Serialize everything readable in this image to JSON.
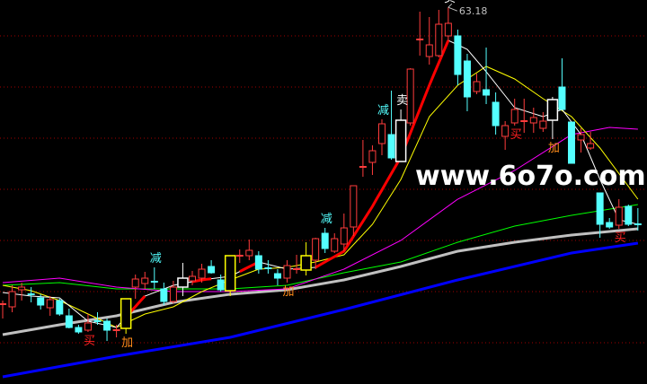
{
  "chart_data": {
    "type": "candlestick",
    "title": "",
    "xlabel": "",
    "ylabel": "",
    "ylim": [
      21.2,
      64.0
    ],
    "grid": {
      "style": "dotted",
      "color": "#a00000",
      "levels": [
        60.0,
        54.3,
        48.6,
        42.9,
        37.2,
        31.5,
        25.8
      ]
    },
    "colors": {
      "up": "#ff3c3c",
      "down": "#54ffff",
      "background": "#000000"
    },
    "max_label": {
      "index": 47,
      "text": "63.18"
    },
    "candles": [
      [
        30.0,
        30.1,
        30.5,
        28.5
      ],
      [
        29.8,
        31.5,
        32.2,
        29.2
      ],
      [
        31.7,
        32.0,
        32.5,
        30.5
      ],
      [
        31.2,
        31.1,
        32.0,
        30.3
      ],
      [
        30.8,
        30.0,
        31.2,
        29.5
      ],
      [
        29.7,
        30.6,
        31.0,
        28.8
      ],
      [
        30.5,
        29.0,
        30.7,
        28.8
      ],
      [
        28.8,
        27.5,
        29.6,
        27.4
      ],
      [
        27.5,
        27.0,
        27.8,
        26.8
      ],
      [
        27.2,
        28.0,
        29.0,
        27.0
      ],
      [
        28.2,
        28.1,
        29.2,
        27.8
      ],
      [
        28.2,
        27.2,
        28.5,
        26.0
      ],
      [
        27.1,
        27.2,
        27.8,
        26.4
      ],
      [
        27.4,
        30.7,
        30.7,
        26.8
      ],
      [
        32.0,
        32.9,
        33.4,
        30.7
      ],
      [
        32.4,
        33.0,
        33.7,
        31.8
      ],
      [
        32.6,
        32.5,
        34.2,
        31.8
      ],
      [
        31.8,
        30.4,
        32.5,
        30.0
      ],
      [
        30.4,
        32.0,
        32.7,
        30.2
      ],
      [
        32.0,
        33.0,
        34.7,
        31.0
      ],
      [
        32.7,
        33.2,
        33.8,
        32.2
      ],
      [
        33.0,
        34.0,
        34.6,
        32.5
      ],
      [
        34.3,
        33.6,
        35.0,
        33.5
      ],
      [
        32.8,
        31.7,
        33.4,
        31.5
      ],
      [
        31.6,
        35.5,
        35.5,
        31.0
      ],
      [
        35.4,
        35.5,
        36.2,
        34.7
      ],
      [
        35.5,
        36.1,
        37.3,
        35.0
      ],
      [
        35.5,
        34.0,
        36.0,
        33.5
      ],
      [
        34.1,
        34.0,
        35.0,
        33.5
      ],
      [
        33.5,
        33.0,
        34.0,
        32.2
      ],
      [
        33.0,
        34.4,
        35.0,
        32.5
      ],
      [
        33.9,
        34.0,
        35.6,
        33.5
      ],
      [
        33.9,
        35.5,
        37.0,
        33.3
      ],
      [
        35.0,
        37.4,
        37.5,
        34.0
      ],
      [
        38.0,
        36.3,
        38.6,
        35.8
      ],
      [
        36.0,
        37.4,
        38.0,
        35.8
      ],
      [
        36.8,
        38.6,
        40.2,
        36.0
      ],
      [
        38.7,
        43.3,
        43.3,
        37.7
      ],
      [
        45.3,
        45.4,
        48.4,
        44.3
      ],
      [
        45.9,
        47.2,
        47.8,
        44.5
      ],
      [
        48.0,
        50.2,
        50.7,
        46.7
      ],
      [
        49.0,
        46.4,
        53.9,
        46.2
      ],
      [
        46.0,
        50.6,
        51.8,
        46.0
      ],
      [
        50.3,
        56.3,
        56.4,
        50.0
      ],
      [
        59.5,
        59.6,
        62.7,
        57.8
      ],
      [
        57.7,
        59.0,
        62.1,
        56.8
      ],
      [
        57.8,
        61.3,
        62.9,
        57.6
      ],
      [
        60.0,
        61.4,
        63.18,
        59.5
      ],
      [
        60.0,
        55.7,
        60.7,
        54.5
      ],
      [
        57.2,
        53.2,
        58.0,
        51.6
      ],
      [
        53.8,
        54.9,
        55.8,
        53.5
      ],
      [
        54.0,
        53.4,
        58.7,
        52.4
      ],
      [
        52.6,
        50.0,
        53.7,
        49.0
      ],
      [
        48.8,
        50.0,
        50.5,
        47.3
      ],
      [
        50.3,
        51.8,
        53.0,
        50.0
      ],
      [
        50.4,
        50.5,
        53.0,
        49.2
      ],
      [
        50.3,
        50.9,
        52.0,
        49.2
      ],
      [
        49.7,
        50.5,
        51.5,
        49.3
      ],
      [
        50.6,
        52.9,
        53.2,
        48.5
      ],
      [
        54.3,
        51.8,
        57.5,
        51.8
      ],
      [
        50.4,
        45.8,
        50.4,
        45.8
      ],
      [
        48.4,
        49.0,
        49.7,
        47.0
      ],
      [
        47.5,
        48.0,
        49.3,
        47.3
      ],
      [
        42.5,
        39.0,
        42.5,
        37.5
      ],
      [
        39.2,
        38.7,
        39.7,
        38.5
      ],
      [
        38.9,
        40.9,
        41.8,
        38.5
      ],
      [
        41.0,
        39.0,
        41.2,
        38.8
      ],
      [
        39.0,
        38.9,
        40.8,
        38.3
      ]
    ],
    "candle_fields": [
      "open",
      "close",
      "high",
      "low"
    ],
    "boxed_candles": [
      {
        "index": 13,
        "color": "#ffff00"
      },
      {
        "index": 24,
        "color": "#ffff00"
      },
      {
        "index": 32,
        "color": "#ffff00"
      },
      {
        "index": 19,
        "color": "#ffffff"
      },
      {
        "index": 42,
        "color": "#ffffff"
      },
      {
        "index": 58,
        "color": "#ffffff"
      }
    ],
    "lines": [
      {
        "color": "#0000ff",
        "width": 3,
        "points": [
          [
            0,
            22.0
          ],
          [
            12,
            24.3
          ],
          [
            24,
            26.4
          ],
          [
            36,
            29.5
          ],
          [
            48,
            32.8
          ],
          [
            60,
            35.8
          ],
          [
            67,
            36.9
          ]
        ]
      },
      {
        "color": "#c0c0c0",
        "width": 3,
        "points": [
          [
            0,
            26.7
          ],
          [
            6,
            27.8
          ],
          [
            12,
            28.8
          ],
          [
            18,
            30.3
          ],
          [
            24,
            31.2
          ],
          [
            30,
            31.7
          ],
          [
            36,
            32.8
          ],
          [
            42,
            34.3
          ],
          [
            48,
            36.0
          ],
          [
            54,
            37.0
          ],
          [
            60,
            37.8
          ],
          [
            67,
            38.5
          ]
        ]
      },
      {
        "color": "#00ff00",
        "width": 1,
        "points": [
          [
            0,
            32.2
          ],
          [
            6,
            32.5
          ],
          [
            12,
            31.8
          ],
          [
            18,
            31.8
          ],
          [
            24,
            31.8
          ],
          [
            30,
            32.2
          ],
          [
            36,
            33.6
          ],
          [
            42,
            34.8
          ],
          [
            48,
            37.0
          ],
          [
            54,
            38.8
          ],
          [
            60,
            40.0
          ],
          [
            67,
            41.2
          ]
        ]
      },
      {
        "color": "#ff00ff",
        "width": 1,
        "points": [
          [
            0,
            32.5
          ],
          [
            6,
            33.0
          ],
          [
            12,
            32.0
          ],
          [
            18,
            31.5
          ],
          [
            24,
            31.5
          ],
          [
            30,
            31.8
          ],
          [
            36,
            34.0
          ],
          [
            42,
            37.2
          ],
          [
            48,
            41.8
          ],
          [
            54,
            45.0
          ],
          [
            60,
            49.0
          ],
          [
            64,
            49.8
          ],
          [
            67,
            49.6
          ]
        ]
      },
      {
        "color": "#ffff00",
        "width": 1,
        "points": [
          [
            0,
            32.2
          ],
          [
            3,
            31.6
          ],
          [
            6,
            30.5
          ],
          [
            9,
            29.0
          ],
          [
            12,
            27.5
          ],
          [
            15,
            29.0
          ],
          [
            18,
            29.8
          ],
          [
            21,
            31.5
          ],
          [
            24,
            32.8
          ],
          [
            27,
            34.0
          ],
          [
            30,
            34.2
          ],
          [
            33,
            34.8
          ],
          [
            36,
            35.6
          ],
          [
            39,
            39.0
          ],
          [
            42,
            44.0
          ],
          [
            45,
            51.0
          ],
          [
            48,
            54.5
          ],
          [
            51,
            56.6
          ],
          [
            54,
            55.2
          ],
          [
            57,
            53.0
          ],
          [
            60,
            51.0
          ],
          [
            63,
            47.5
          ],
          [
            67,
            41.8
          ]
        ]
      },
      {
        "color": "#ffffff",
        "width": 1,
        "highlight_color": "#ff0000",
        "highlight_ranges": [
          [
            13,
            15
          ],
          [
            20,
            22
          ],
          [
            25,
            27
          ],
          [
            33,
            47
          ]
        ],
        "points": [
          [
            0,
            31.4
          ],
          [
            3,
            31.0
          ],
          [
            6,
            30.8
          ],
          [
            9,
            28.2
          ],
          [
            12,
            27.5
          ],
          [
            15,
            31.0
          ],
          [
            18,
            32.2
          ],
          [
            21,
            32.8
          ],
          [
            24,
            33.2
          ],
          [
            27,
            34.8
          ],
          [
            30,
            34.0
          ],
          [
            33,
            34.2
          ],
          [
            36,
            36.0
          ],
          [
            39,
            41.0
          ],
          [
            42,
            46.5
          ],
          [
            45,
            54.5
          ],
          [
            47,
            59.5
          ],
          [
            49,
            58.5
          ],
          [
            51,
            56.0
          ],
          [
            54,
            52.0
          ],
          [
            57,
            51.0
          ],
          [
            59,
            51.8
          ],
          [
            61,
            49.0
          ],
          [
            63,
            44.0
          ],
          [
            65,
            39.5
          ],
          [
            67,
            39.0
          ]
        ]
      }
    ],
    "signals": [
      {
        "index": 42,
        "text": "卖",
        "position": "above",
        "color": "#ffffff"
      },
      {
        "index": 47,
        "text": "卖",
        "position": "above",
        "color": "#ffffff"
      },
      {
        "index": 16,
        "text": "减",
        "position": "above",
        "color": "#54ffff"
      },
      {
        "index": 34,
        "text": "减",
        "position": "above",
        "color": "#54ffff"
      },
      {
        "index": 40,
        "text": "减",
        "position": "above",
        "color": "#54ffff"
      },
      {
        "index": 9,
        "text": "买",
        "position": "below",
        "color": "#ff2020"
      },
      {
        "index": 54,
        "text": "买",
        "position": "below",
        "color": "#ff2020"
      },
      {
        "index": 65,
        "text": "买",
        "position": "below",
        "color": "#ff2020"
      },
      {
        "index": 13,
        "text": "加",
        "position": "below",
        "color": "#ff8c1a"
      },
      {
        "index": 30,
        "text": "加",
        "position": "below",
        "color": "#ff8c1a"
      },
      {
        "index": 58,
        "text": "加",
        "position": "below",
        "color": "#ff8c1a"
      }
    ]
  },
  "watermark": "www.6o7o.com"
}
